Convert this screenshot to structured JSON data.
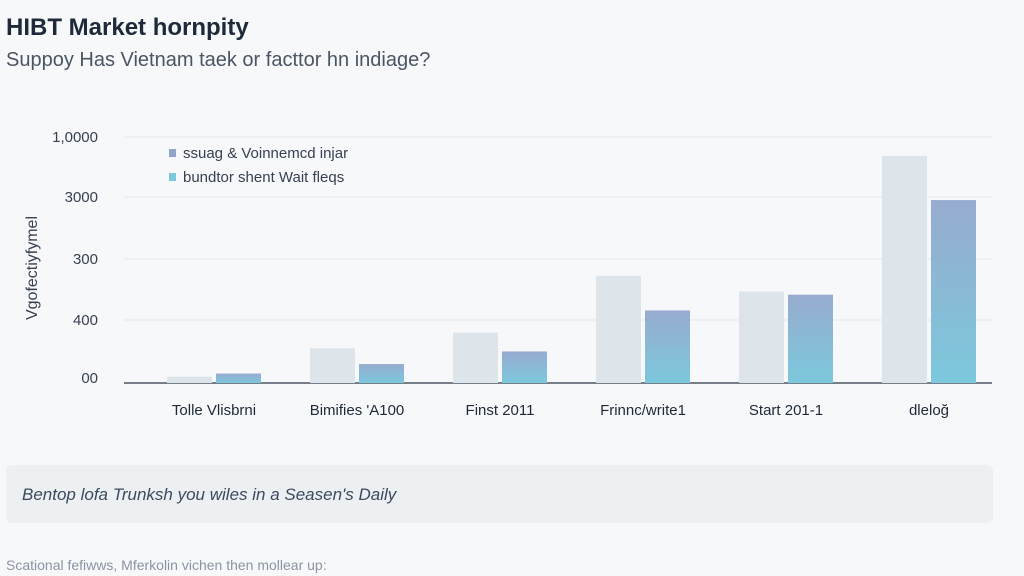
{
  "header": {
    "title": "HIBT Market hornpity",
    "subtitle": "Suppoy Has Vietnam taek or facttor hn indiage?"
  },
  "chart_data": {
    "type": "bar",
    "title": "HIBT Market hornpity",
    "ylabel": "Vgofectiyfymel",
    "xlabel": "",
    "grid": true,
    "legend_position": "top-left",
    "y_tick_labels": [
      "00",
      "400",
      "300",
      "3000",
      "1,0000"
    ],
    "categories": [
      "Tolle Vlisbrni",
      "Bimifies 'A100",
      "Finst 2011",
      "Frinnc/write1",
      "Start 201-1",
      "dleloğ"
    ],
    "series": [
      {
        "name": "ssuag & Voinnemcd injar",
        "color": "#dde5ea",
        "values": [
          0.2,
          1.1,
          1.6,
          3.4,
          2.9,
          7.2
        ]
      },
      {
        "name": "bundtor shent Wait fleqs",
        "color_top": "#97abd0",
        "color_bottom": "#7cc8dc",
        "values": [
          0.3,
          0.6,
          1.0,
          2.3,
          2.8,
          5.8
        ]
      }
    ],
    "ylim": [
      0,
      7.8
    ]
  },
  "note": {
    "text": "Bentop lofa Trunksh you wiles in a Seasen's Daily"
  },
  "footer": {
    "text": "Scational fefiwws, Mferkolin vichen then mollear up:"
  }
}
